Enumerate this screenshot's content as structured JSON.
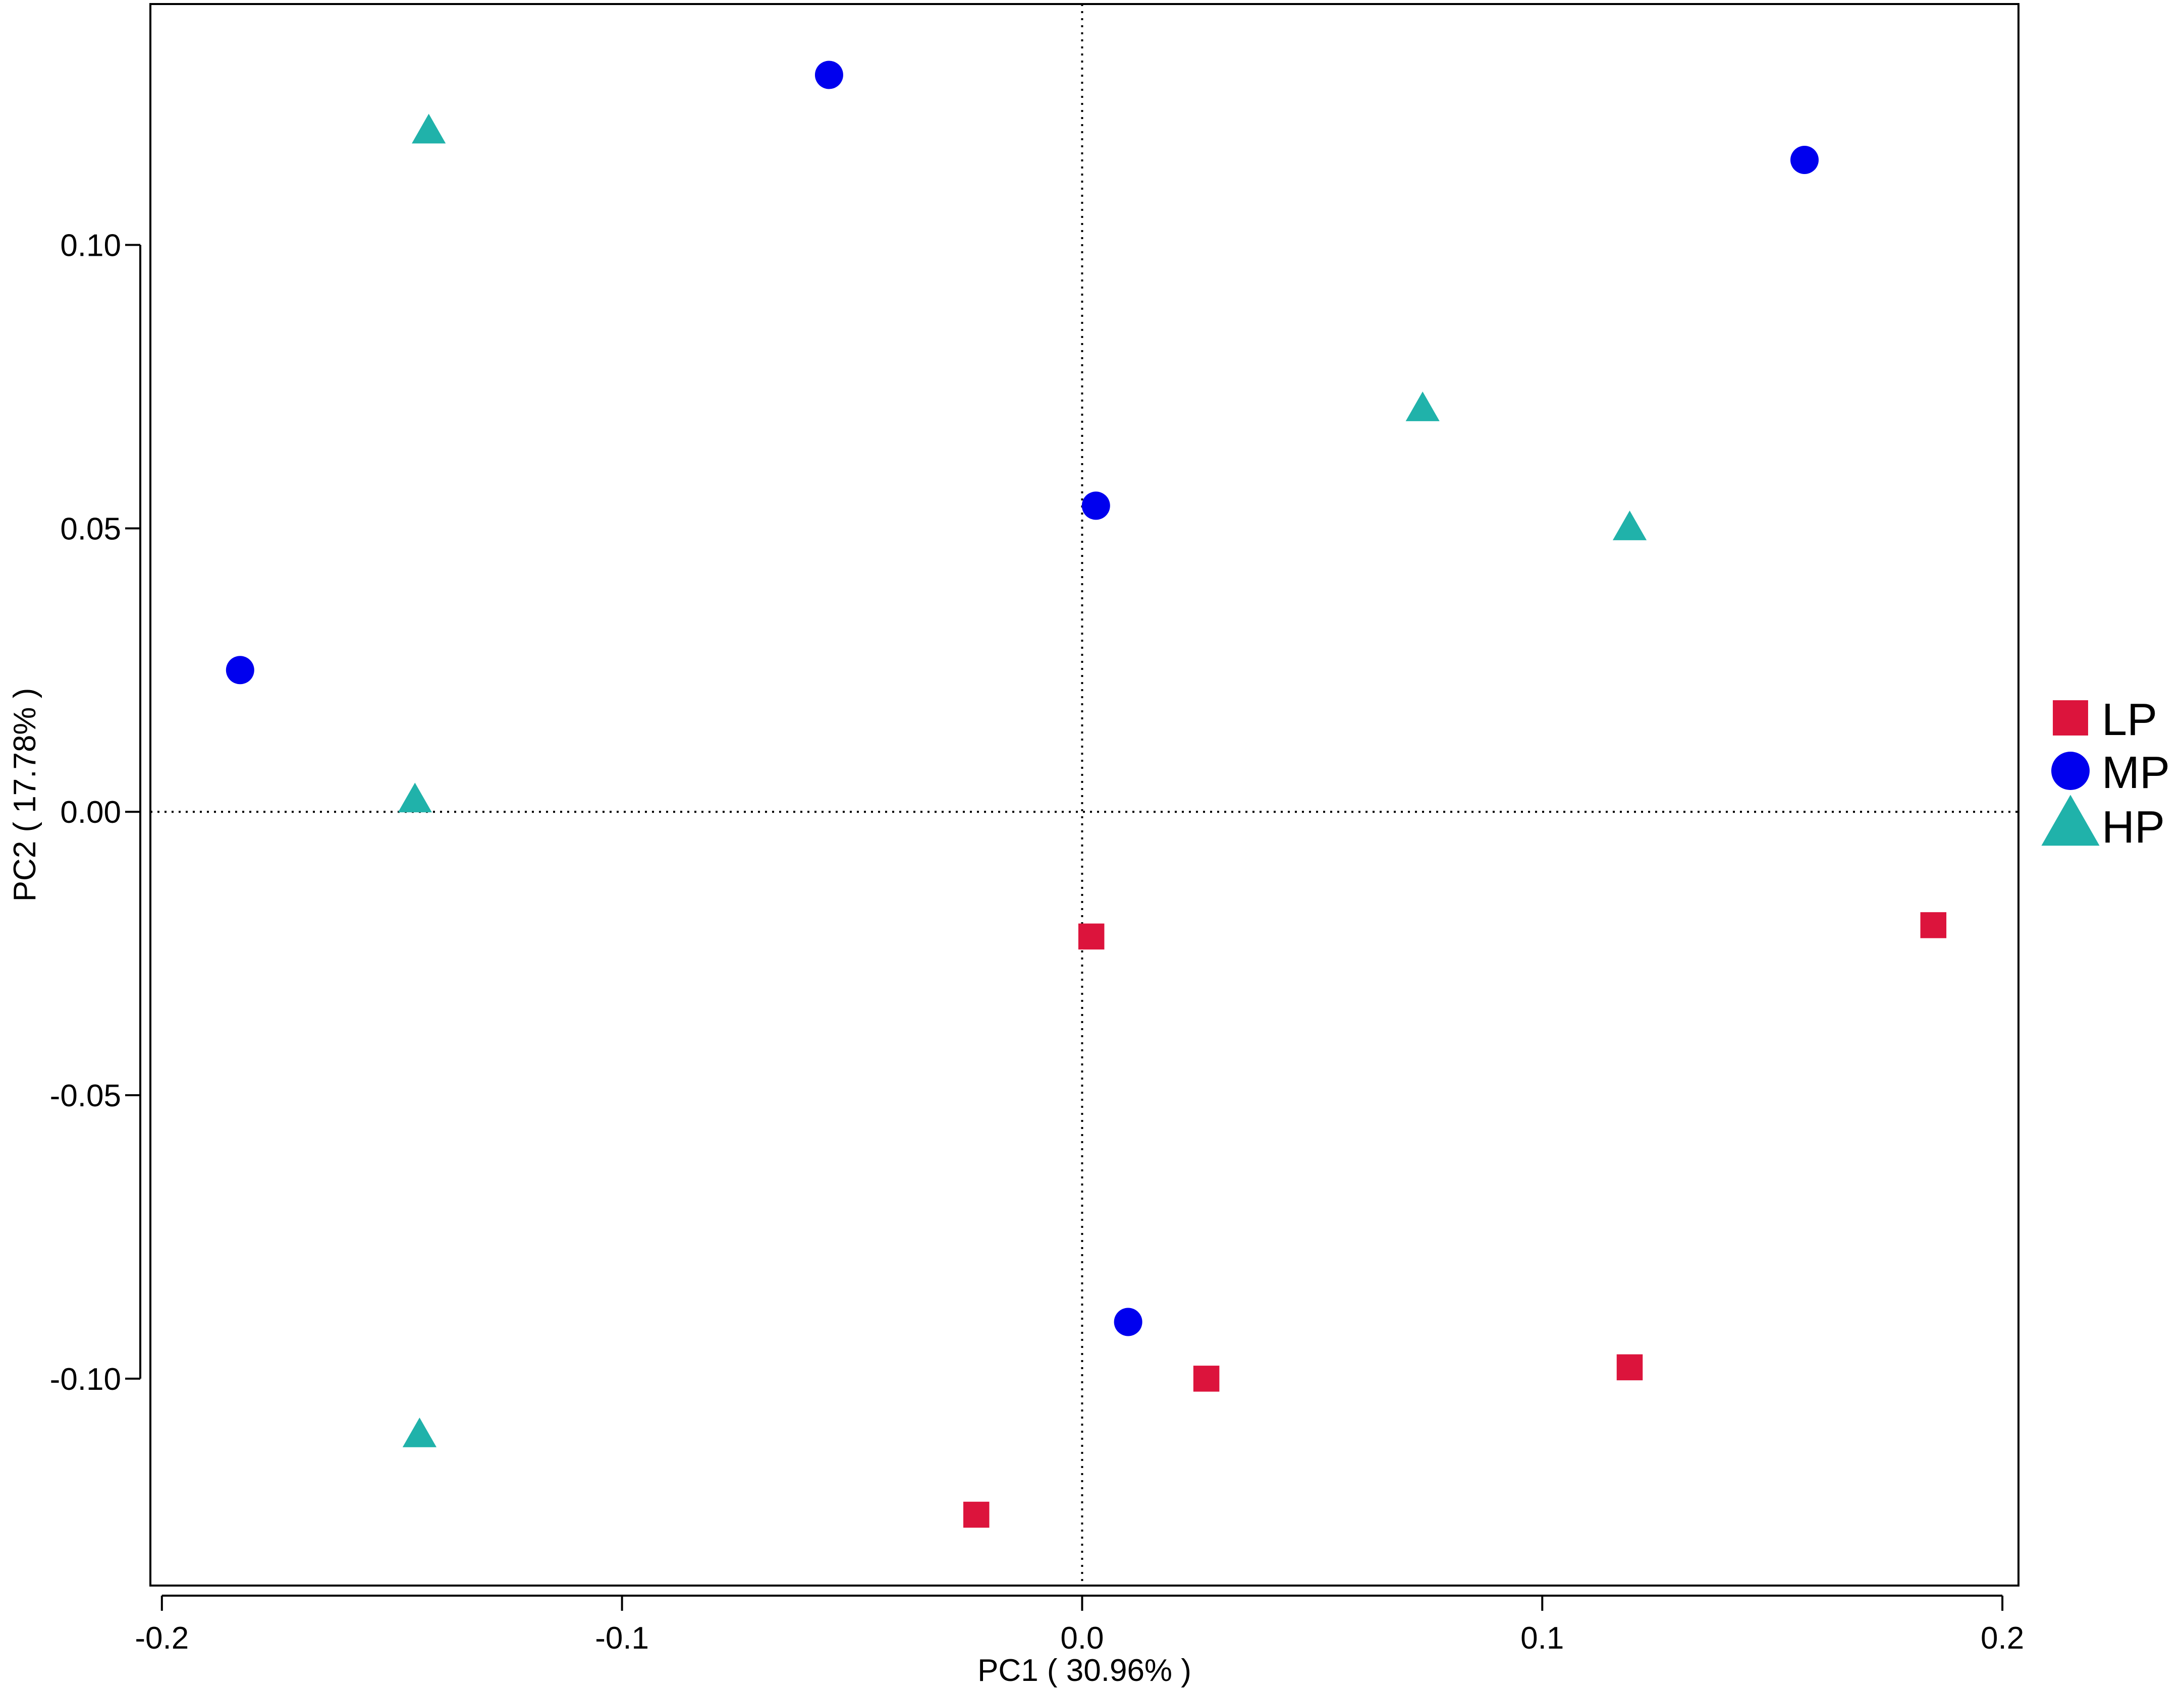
{
  "chart_data": {
    "type": "scatter",
    "title": "",
    "xlabel": "PC1 ( 30.96% )",
    "ylabel": "PC2 ( 17.78% )",
    "xlim": [
      -0.2025,
      0.2035
    ],
    "ylim": [
      -0.1365,
      0.1425
    ],
    "x_ticks": [
      -0.2,
      -0.1,
      0.0,
      0.1,
      0.2
    ],
    "x_tick_labels": [
      "-0.2",
      "-0.1",
      "0.0",
      "0.1",
      "0.2"
    ],
    "y_ticks": [
      -0.1,
      -0.05,
      0.0,
      0.05,
      0.1
    ],
    "y_tick_labels": [
      "-0.10",
      "-0.05",
      "0.00",
      "0.05",
      "0.10"
    ],
    "grid": false,
    "reference_lines": {
      "x": 0,
      "y": 0,
      "style": "dotted"
    },
    "legend_position": "right",
    "series": [
      {
        "name": "LP",
        "marker": "square",
        "color": "#DC143C",
        "points": [
          {
            "x": 0.002,
            "y": -0.022
          },
          {
            "x": 0.185,
            "y": -0.02
          },
          {
            "x": 0.027,
            "y": -0.1
          },
          {
            "x": 0.119,
            "y": -0.098
          },
          {
            "x": -0.023,
            "y": -0.124
          }
        ]
      },
      {
        "name": "MP",
        "marker": "circle",
        "color": "#0000EE",
        "points": [
          {
            "x": -0.055,
            "y": 0.13
          },
          {
            "x": 0.157,
            "y": 0.115
          },
          {
            "x": 0.003,
            "y": 0.054
          },
          {
            "x": -0.183,
            "y": 0.025
          },
          {
            "x": 0.01,
            "y": -0.09
          }
        ]
      },
      {
        "name": "HP",
        "marker": "triangle",
        "color": "#20B2AA",
        "points": [
          {
            "x": -0.142,
            "y": 0.12
          },
          {
            "x": 0.074,
            "y": 0.071
          },
          {
            "x": 0.119,
            "y": 0.05
          },
          {
            "x": -0.145,
            "y": 0.002
          },
          {
            "x": -0.144,
            "y": -0.11
          }
        ]
      }
    ]
  }
}
